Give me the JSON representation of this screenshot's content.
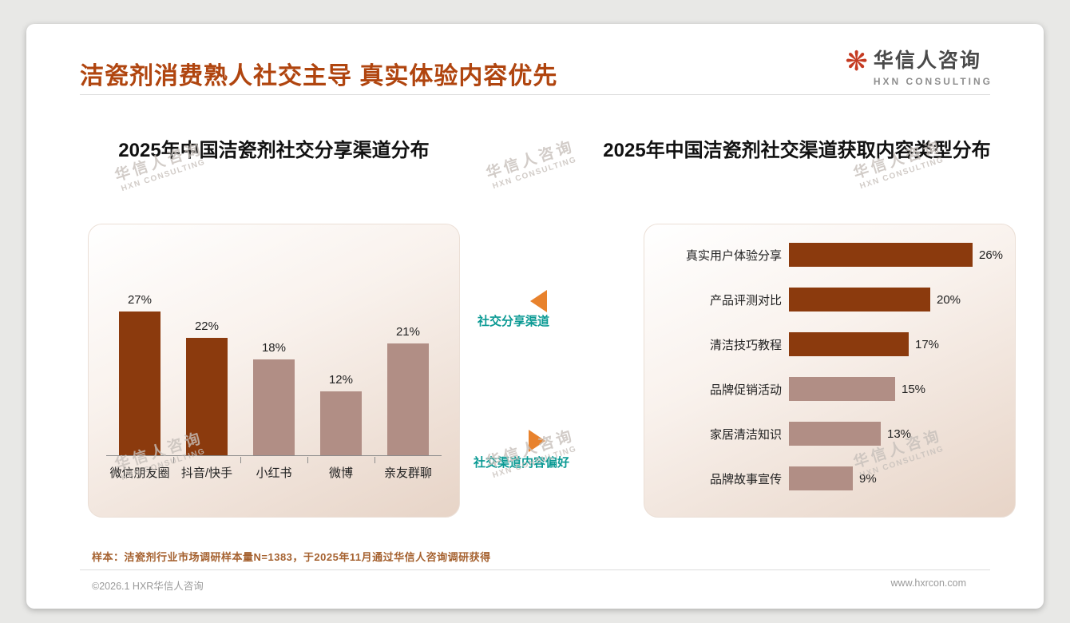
{
  "page": {
    "title": "洁瓷剂消费熟人社交主导 真实体验内容优先",
    "logo": {
      "icon_glyph": "❋",
      "icon_name": "flower-logo-icon",
      "name": "华信人咨询",
      "subtitle": "HXN CONSULTING"
    },
    "watermark": {
      "line1": "华信人咨询",
      "line2": "HXN CONSULTING"
    },
    "callouts": {
      "share_channels": "社交分享渠道",
      "content_preference": "社交渠道内容偏好"
    },
    "sample_note": "样本：洁瓷剂行业市场调研样本量N=1383，于2025年11月通过华信人咨询调研获得",
    "footer": {
      "left": "©2026.1 HXR华信人咨询",
      "right": "www.hxrcon.com"
    },
    "colors": {
      "title": "#B0450F",
      "bar_primary": "#8B3A0D",
      "bar_secondary": "#B18E85",
      "arrow": "#E8822D",
      "callout_text": "#0B9A94"
    }
  },
  "chart_data": [
    {
      "type": "bar",
      "orientation": "vertical",
      "title": "2025年中国洁瓷剂社交分享渠道分布",
      "categories": [
        "微信朋友圈",
        "抖音/快手",
        "小红书",
        "微博",
        "亲友群聊"
      ],
      "values": [
        27,
        22,
        18,
        12,
        21
      ],
      "unit": "%",
      "ylim": [
        0,
        30
      ],
      "grid": false,
      "legend": false,
      "highlight_count": 2,
      "colors": {
        "primary": "#8B3A0D",
        "secondary": "#B18E85"
      }
    },
    {
      "type": "bar",
      "orientation": "horizontal",
      "title": "2025年中国洁瓷剂社交渠道获取内容类型分布",
      "categories": [
        "真实用户体验分享",
        "产品评测对比",
        "清洁技巧教程",
        "品牌促销活动",
        "家居清洁知识",
        "品牌故事宣传"
      ],
      "values": [
        26,
        20,
        17,
        15,
        13,
        9
      ],
      "unit": "%",
      "xlim": [
        0,
        30
      ],
      "grid": false,
      "legend": false,
      "highlight_count": 3,
      "colors": {
        "primary": "#8B3A0D",
        "secondary": "#B18E85"
      }
    }
  ]
}
